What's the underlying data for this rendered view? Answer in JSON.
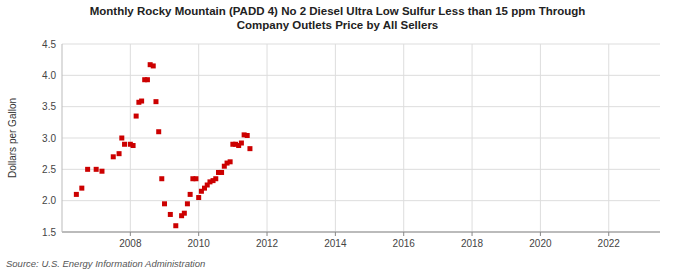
{
  "chart_data": {
    "type": "scatter",
    "title": "Monthly Rocky Mountain (PADD 4) No 2 Diesel Ultra Low Sulfur Less than 15 ppm Through\nCompany Outlets Price by All Sellers",
    "ylabel": "Dollars per Gallon",
    "source": "Source: U.S. Energy Information Administration",
    "color": "#cc0000",
    "marker": "square",
    "grid": true,
    "xlim": [
      2006.0,
      2023.5
    ],
    "ylim": [
      1.5,
      4.5
    ],
    "xticks": [
      2008,
      2010,
      2012,
      2014,
      2016,
      2018,
      2020,
      2022
    ],
    "yticks": [
      1.5,
      {
        "value": 2.0,
        "label": "2.0"
      },
      2.5,
      {
        "value": 3.0,
        "label": "3.0"
      },
      3.5,
      {
        "value": 4.0,
        "label": "4.0"
      },
      4.5
    ],
    "x": [
      2006.42,
      2006.58,
      2006.75,
      2007.0,
      2007.17,
      2007.5,
      2007.67,
      2007.75,
      2007.83,
      2008.0,
      2008.08,
      2008.17,
      2008.25,
      2008.33,
      2008.42,
      2008.5,
      2008.58,
      2008.67,
      2008.75,
      2008.83,
      2008.92,
      2009.0,
      2009.17,
      2009.33,
      2009.5,
      2009.58,
      2009.67,
      2009.75,
      2009.83,
      2009.92,
      2010.0,
      2010.08,
      2010.17,
      2010.25,
      2010.33,
      2010.42,
      2010.5,
      2010.58,
      2010.67,
      2010.75,
      2010.83,
      2010.92,
      2011.0,
      2011.08,
      2011.17,
      2011.25,
      2011.33,
      2011.42,
      2011.5
    ],
    "values": [
      2.1,
      2.2,
      2.5,
      2.5,
      2.47,
      2.7,
      2.75,
      3.0,
      2.9,
      2.9,
      2.88,
      3.35,
      3.57,
      3.59,
      3.93,
      3.93,
      4.17,
      4.15,
      3.58,
      3.1,
      2.35,
      1.95,
      1.78,
      1.6,
      1.76,
      1.8,
      1.95,
      2.1,
      2.35,
      2.35,
      2.05,
      2.15,
      2.2,
      2.25,
      2.3,
      2.32,
      2.35,
      2.45,
      2.45,
      2.55,
      2.6,
      2.62,
      2.9,
      2.9,
      2.88,
      2.92,
      3.05,
      3.04,
      2.83
    ]
  }
}
